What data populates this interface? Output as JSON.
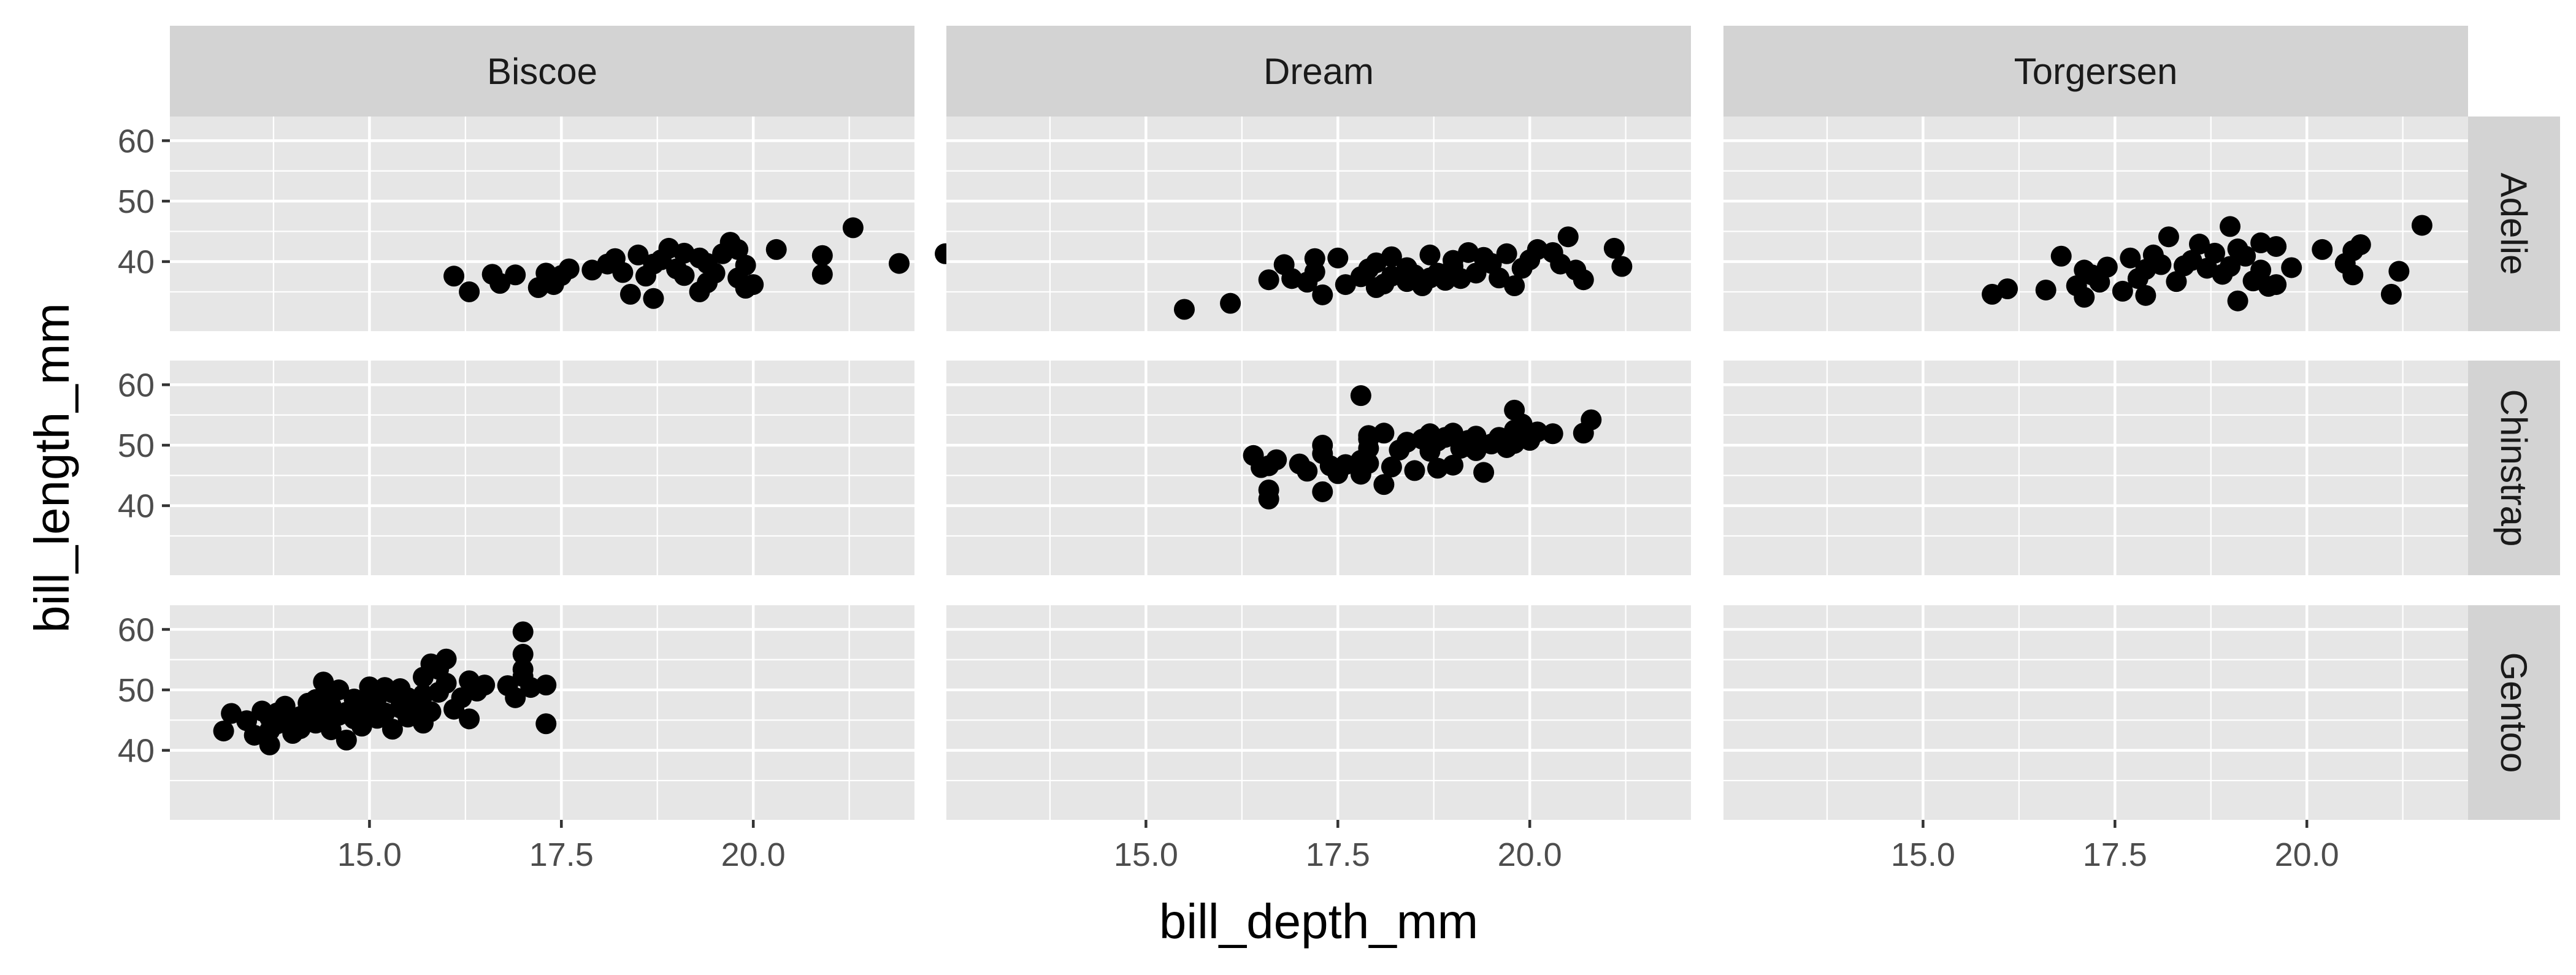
{
  "colors": {
    "panel_bg": "#e6e6e6",
    "strip_bg": "#d3d3d3",
    "grid": "#ffffff",
    "point": "#000000",
    "tick": "#333333"
  },
  "chart_data": {
    "type": "scatter",
    "xlabel": "bill_depth_mm",
    "ylabel": "bill_length_mm",
    "facet_cols": [
      "Biscoe",
      "Dream",
      "Torgersen"
    ],
    "facet_rows": [
      "Adelie",
      "Chinstrap",
      "Gentoo"
    ],
    "xlim": [
      12.4,
      22.1
    ],
    "x_ticks": [
      15,
      17.5,
      20
    ],
    "x_tick_labels": [
      "15.0",
      "17.5",
      "20.0"
    ],
    "ylim": [
      28.5,
      64
    ],
    "y_ticks": [
      40,
      50,
      60
    ],
    "y_tick_labels": [
      "40",
      "50",
      "60"
    ],
    "grid": true,
    "panels": [
      {
        "col": "Biscoe",
        "row": "Adelie",
        "points": [
          [
            16.1,
            37.6
          ],
          [
            16.3,
            35.0
          ],
          [
            16.6,
            37.9
          ],
          [
            16.7,
            36.4
          ],
          [
            16.9,
            37.8
          ],
          [
            17.2,
            35.7
          ],
          [
            17.3,
            38.1
          ],
          [
            17.4,
            36.2
          ],
          [
            17.5,
            37.7
          ],
          [
            17.6,
            38.8
          ],
          [
            17.9,
            38.6
          ],
          [
            18.1,
            39.6
          ],
          [
            18.2,
            40.5
          ],
          [
            18.3,
            38.2
          ],
          [
            18.4,
            34.6
          ],
          [
            18.5,
            41.1
          ],
          [
            18.6,
            37.6
          ],
          [
            18.7,
            33.9
          ],
          [
            18.7,
            39.6
          ],
          [
            18.8,
            40.3
          ],
          [
            18.9,
            42.2
          ],
          [
            19.0,
            38.8
          ],
          [
            19.1,
            41.4
          ],
          [
            19.1,
            37.7
          ],
          [
            19.3,
            40.6
          ],
          [
            19.3,
            35.0
          ],
          [
            19.4,
            36.5
          ],
          [
            19.4,
            39.7
          ],
          [
            19.5,
            38.1
          ],
          [
            19.6,
            41.3
          ],
          [
            19.7,
            43.2
          ],
          [
            19.8,
            37.3
          ],
          [
            19.8,
            42.0
          ],
          [
            19.9,
            39.4
          ],
          [
            19.9,
            35.6
          ],
          [
            20.0,
            36.2
          ],
          [
            20.3,
            42.0
          ],
          [
            20.9,
            41.0
          ],
          [
            20.9,
            37.9
          ],
          [
            21.3,
            45.6
          ],
          [
            21.9,
            39.7
          ],
          [
            22.5,
            41.3
          ]
        ]
      },
      {
        "col": "Dream",
        "row": "Adelie",
        "points": [
          [
            15.5,
            32.1
          ],
          [
            16.1,
            33.1
          ],
          [
            16.6,
            37.0
          ],
          [
            16.8,
            39.5
          ],
          [
            16.9,
            37.2
          ],
          [
            17.1,
            36.6
          ],
          [
            17.2,
            38.3
          ],
          [
            17.2,
            40.5
          ],
          [
            17.3,
            34.5
          ],
          [
            17.5,
            40.6
          ],
          [
            17.6,
            36.2
          ],
          [
            17.8,
            37.5
          ],
          [
            17.9,
            38.8
          ],
          [
            18.0,
            39.8
          ],
          [
            18.0,
            35.7
          ],
          [
            18.1,
            36.3
          ],
          [
            18.2,
            37.6
          ],
          [
            18.2,
            40.8
          ],
          [
            18.4,
            36.7
          ],
          [
            18.4,
            39.0
          ],
          [
            18.5,
            37.8
          ],
          [
            18.6,
            36.0
          ],
          [
            18.7,
            37.3
          ],
          [
            18.7,
            41.1
          ],
          [
            18.8,
            38.1
          ],
          [
            18.9,
            36.9
          ],
          [
            19.0,
            39.2
          ],
          [
            19.0,
            40.2
          ],
          [
            19.1,
            37.2
          ],
          [
            19.2,
            41.5
          ],
          [
            19.3,
            38.1
          ],
          [
            19.4,
            40.7
          ],
          [
            19.5,
            39.7
          ],
          [
            19.6,
            37.3
          ],
          [
            19.7,
            41.3
          ],
          [
            19.8,
            36.0
          ],
          [
            19.9,
            38.9
          ],
          [
            20.0,
            40.3
          ],
          [
            20.1,
            42.0
          ],
          [
            20.3,
            41.5
          ],
          [
            20.4,
            39.6
          ],
          [
            20.5,
            44.1
          ],
          [
            20.6,
            38.6
          ],
          [
            20.7,
            37.0
          ],
          [
            21.1,
            42.2
          ],
          [
            21.2,
            39.2
          ]
        ]
      },
      {
        "col": "Torgersen",
        "row": "Adelie",
        "points": [
          [
            15.9,
            34.6
          ],
          [
            16.1,
            35.5
          ],
          [
            16.6,
            35.3
          ],
          [
            16.8,
            40.9
          ],
          [
            17.0,
            36.0
          ],
          [
            17.1,
            34.1
          ],
          [
            17.1,
            38.6
          ],
          [
            17.2,
            37.8
          ],
          [
            17.3,
            36.6
          ],
          [
            17.4,
            39.1
          ],
          [
            17.6,
            35.1
          ],
          [
            17.7,
            40.6
          ],
          [
            17.8,
            37.2
          ],
          [
            17.9,
            38.7
          ],
          [
            17.9,
            34.4
          ],
          [
            18.0,
            41.1
          ],
          [
            18.1,
            39.5
          ],
          [
            18.2,
            44.1
          ],
          [
            18.3,
            36.7
          ],
          [
            18.4,
            39.3
          ],
          [
            18.5,
            40.2
          ],
          [
            18.6,
            42.9
          ],
          [
            18.7,
            38.9
          ],
          [
            18.8,
            41.4
          ],
          [
            18.9,
            37.9
          ],
          [
            19.0,
            45.8
          ],
          [
            19.0,
            39.2
          ],
          [
            19.1,
            42.1
          ],
          [
            19.1,
            33.5
          ],
          [
            19.2,
            40.9
          ],
          [
            19.3,
            36.8
          ],
          [
            19.4,
            43.1
          ],
          [
            19.4,
            38.6
          ],
          [
            19.5,
            35.9
          ],
          [
            19.6,
            42.5
          ],
          [
            19.6,
            36.2
          ],
          [
            19.8,
            39.0
          ],
          [
            20.2,
            42.0
          ],
          [
            20.6,
            37.8
          ],
          [
            20.7,
            42.8
          ],
          [
            21.1,
            34.6
          ],
          [
            21.2,
            38.4
          ],
          [
            21.5,
            46.0
          ],
          [
            20.5,
            39.7
          ],
          [
            20.6,
            41.8
          ]
        ]
      },
      {
        "col": "Dream",
        "row": "Chinstrap",
        "points": [
          [
            16.4,
            48.3
          ],
          [
            16.5,
            46.3
          ],
          [
            16.6,
            41.1
          ],
          [
            16.6,
            42.6
          ],
          [
            16.6,
            46.6
          ],
          [
            16.7,
            47.6
          ],
          [
            17.0,
            46.9
          ],
          [
            17.1,
            45.7
          ],
          [
            17.3,
            42.3
          ],
          [
            17.3,
            48.6
          ],
          [
            17.3,
            50.0
          ],
          [
            17.4,
            46.6
          ],
          [
            17.5,
            45.3
          ],
          [
            17.6,
            46.8
          ],
          [
            17.8,
            47.5
          ],
          [
            17.8,
            45.2
          ],
          [
            17.8,
            58.2
          ],
          [
            17.9,
            47.0
          ],
          [
            17.9,
            49.5
          ],
          [
            17.9,
            51.0
          ],
          [
            18.1,
            43.5
          ],
          [
            18.1,
            52.0
          ],
          [
            18.2,
            46.4
          ],
          [
            18.3,
            49.2
          ],
          [
            18.4,
            50.5
          ],
          [
            18.5,
            45.8
          ],
          [
            18.6,
            51.0
          ],
          [
            18.7,
            49.0
          ],
          [
            18.8,
            46.2
          ],
          [
            18.8,
            50.7
          ],
          [
            18.9,
            51.3
          ],
          [
            19.0,
            46.7
          ],
          [
            19.0,
            52.0
          ],
          [
            19.1,
            49.5
          ],
          [
            19.2,
            50.8
          ],
          [
            19.3,
            51.5
          ],
          [
            19.3,
            49.1
          ],
          [
            19.4,
            45.5
          ],
          [
            19.5,
            50.2
          ],
          [
            19.6,
            51.3
          ],
          [
            19.7,
            49.6
          ],
          [
            19.8,
            52.5
          ],
          [
            19.8,
            55.8
          ],
          [
            19.8,
            50.3
          ],
          [
            19.9,
            51.7
          ],
          [
            19.9,
            53.5
          ],
          [
            20.0,
            50.8
          ],
          [
            20.1,
            52.2
          ],
          [
            20.3,
            51.9
          ],
          [
            20.7,
            52.0
          ],
          [
            20.8,
            54.2
          ],
          [
            18.7,
            51.9
          ],
          [
            19.2,
            49.8
          ],
          [
            17.9,
            51.6
          ]
        ]
      },
      {
        "col": "Biscoe",
        "row": "Gentoo",
        "points": [
          [
            13.1,
            43.2
          ],
          [
            13.2,
            46.1
          ],
          [
            13.4,
            44.9
          ],
          [
            13.5,
            42.5
          ],
          [
            13.6,
            46.5
          ],
          [
            13.7,
            43.3
          ],
          [
            13.7,
            40.9
          ],
          [
            13.7,
            45.4
          ],
          [
            13.8,
            46.2
          ],
          [
            13.8,
            44.4
          ],
          [
            13.9,
            45.1
          ],
          [
            13.9,
            47.3
          ],
          [
            14.0,
            42.8
          ],
          [
            14.0,
            44.9
          ],
          [
            14.1,
            45.6
          ],
          [
            14.1,
            43.6
          ],
          [
            14.2,
            47.8
          ],
          [
            14.2,
            46.5
          ],
          [
            14.3,
            48.4
          ],
          [
            14.3,
            44.5
          ],
          [
            14.4,
            51.3
          ],
          [
            14.4,
            46.2
          ],
          [
            14.5,
            49.1
          ],
          [
            14.5,
            43.4
          ],
          [
            14.5,
            47.4
          ],
          [
            14.6,
            45.8
          ],
          [
            14.6,
            50.0
          ],
          [
            14.7,
            41.7
          ],
          [
            14.7,
            46.3
          ],
          [
            14.8,
            45.2
          ],
          [
            14.8,
            48.5
          ],
          [
            14.9,
            47.6
          ],
          [
            14.9,
            44.0
          ],
          [
            15.0,
            46.9
          ],
          [
            15.0,
            50.5
          ],
          [
            15.1,
            48.8
          ],
          [
            15.1,
            45.3
          ],
          [
            15.2,
            50.4
          ],
          [
            15.2,
            46.2
          ],
          [
            15.3,
            43.5
          ],
          [
            15.3,
            49.5
          ],
          [
            15.4,
            47.0
          ],
          [
            15.4,
            50.2
          ],
          [
            15.5,
            45.5
          ],
          [
            15.5,
            48.7
          ],
          [
            15.6,
            47.2
          ],
          [
            15.7,
            52.1
          ],
          [
            15.7,
            49.2
          ],
          [
            15.7,
            44.5
          ],
          [
            15.8,
            46.4
          ],
          [
            15.8,
            54.3
          ],
          [
            15.9,
            49.6
          ],
          [
            16.0,
            51.1
          ],
          [
            16.0,
            55.1
          ],
          [
            16.1,
            46.8
          ],
          [
            16.2,
            48.7
          ],
          [
            16.3,
            45.2
          ],
          [
            16.3,
            51.5
          ],
          [
            16.5,
            50.8
          ],
          [
            16.8,
            50.7
          ],
          [
            17.0,
            59.6
          ],
          [
            17.0,
            55.9
          ],
          [
            17.0,
            52.2
          ],
          [
            17.0,
            53.4
          ],
          [
            17.1,
            50.4
          ],
          [
            17.3,
            44.4
          ],
          [
            17.3,
            50.8
          ],
          [
            16.4,
            49.8
          ],
          [
            15.9,
            53.4
          ],
          [
            16.9,
            48.7
          ]
        ]
      },
      {
        "col": "Torgersen",
        "row": "Chinstrap",
        "points": []
      },
      {
        "col": "Biscoe",
        "row": "Chinstrap",
        "points": []
      },
      {
        "col": "Dream",
        "row": "Gentoo",
        "points": []
      },
      {
        "col": "Torgersen",
        "row": "Gentoo",
        "points": []
      }
    ]
  }
}
